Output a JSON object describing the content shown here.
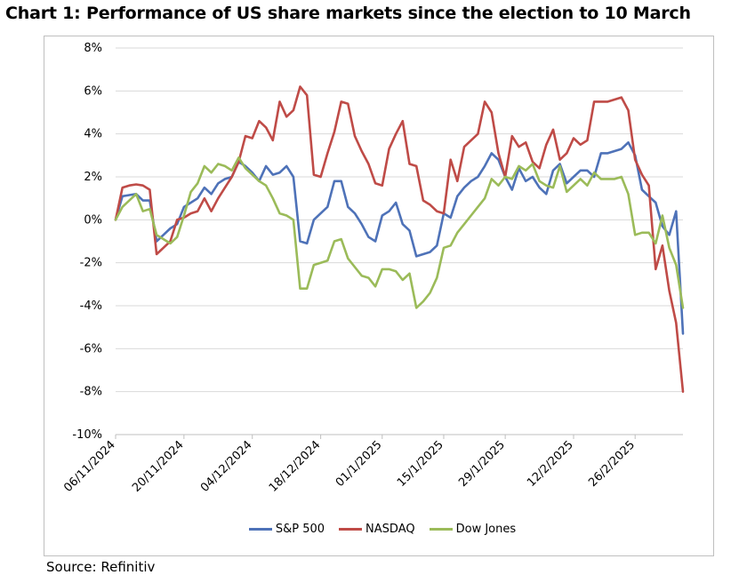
{
  "title": "Chart 1: Performance of US share markets since the election to 10 March",
  "source": "Source: Refinitiv",
  "colors": {
    "sp500": "#4e72b8",
    "nasdaq": "#bf4b47",
    "dow": "#9bbb59",
    "grid": "#d9d9d9",
    "axis": "#bfbfbf"
  },
  "chart_data": {
    "type": "line",
    "title": "Chart 1: Performance of US share markets since the election to 10 March",
    "xlabel": "",
    "ylabel": "",
    "ylim": [
      -10,
      8
    ],
    "yticks": [
      -10,
      -8,
      -6,
      -4,
      -2,
      0,
      2,
      4,
      6,
      8
    ],
    "ytick_labels": [
      "-10%",
      "-8%",
      "-6%",
      "-4%",
      "-2%",
      "0%",
      "2%",
      "4%",
      "6%",
      "8%"
    ],
    "x_tick_labels": [
      {
        "label": "06/11/2024",
        "index": 0
      },
      {
        "label": "20/11/2024",
        "index": 10
      },
      {
        "label": "04/12/2024",
        "index": 20
      },
      {
        "label": "18/12/2024",
        "index": 30
      },
      {
        "label": "01/1/2025",
        "index": 39
      },
      {
        "label": "15/1/2025",
        "index": 48
      },
      {
        "label": "29/1/2025",
        "index": 57
      },
      {
        "label": "12/2/2025",
        "index": 67
      },
      {
        "label": "26/2/2025",
        "index": 76
      }
    ],
    "n_points": 84,
    "series": [
      {
        "name": "S&P 500",
        "key": "sp500",
        "values": [
          0.0,
          1.1,
          1.15,
          1.2,
          0.9,
          0.9,
          -1.0,
          -0.7,
          -0.4,
          -0.2,
          0.6,
          0.8,
          1.0,
          1.5,
          1.2,
          1.7,
          1.9,
          2.0,
          2.7,
          2.5,
          2.2,
          1.8,
          2.5,
          2.1,
          2.2,
          2.5,
          2.0,
          -1.0,
          -1.1,
          0.0,
          0.3,
          0.6,
          1.8,
          1.8,
          0.6,
          0.3,
          -0.2,
          -0.8,
          -1.0,
          0.2,
          0.4,
          0.8,
          -0.2,
          -0.5,
          -1.7,
          -1.6,
          -1.5,
          -1.2,
          0.3,
          0.1,
          1.1,
          1.5,
          1.8,
          2.0,
          2.5,
          3.1,
          2.8,
          2.0,
          1.4,
          2.4,
          1.8,
          2.0,
          1.5,
          1.2,
          2.3,
          2.6,
          1.7,
          2.0,
          2.3,
          2.3,
          2.0,
          3.1,
          3.1,
          3.2,
          3.3,
          3.6,
          3.0,
          1.4,
          1.1,
          0.8,
          -0.3,
          -0.7,
          0.4,
          -5.3
        ]
      },
      {
        "name": "NASDAQ",
        "key": "nasdaq",
        "values": [
          0.0,
          1.5,
          1.6,
          1.65,
          1.6,
          1.4,
          -1.6,
          -1.3,
          -1.0,
          0.0,
          0.1,
          0.3,
          0.4,
          1.0,
          0.4,
          1.0,
          1.5,
          2.0,
          2.7,
          3.9,
          3.8,
          4.6,
          4.3,
          3.7,
          5.5,
          4.8,
          5.1,
          6.2,
          5.8,
          2.1,
          2.0,
          3.1,
          4.1,
          5.5,
          5.4,
          3.9,
          3.2,
          2.6,
          1.7,
          1.6,
          3.3,
          4.0,
          4.6,
          2.6,
          2.5,
          0.9,
          0.7,
          0.4,
          0.3,
          2.8,
          1.8,
          3.4,
          3.7,
          4.0,
          5.5,
          5.0,
          3.1,
          2.0,
          3.9,
          3.4,
          3.6,
          2.7,
          2.4,
          3.5,
          4.2,
          2.8,
          3.1,
          3.8,
          3.5,
          3.7,
          5.5,
          5.5,
          5.5,
          5.6,
          5.7,
          5.1,
          2.8,
          2.1,
          1.6,
          -2.3,
          -1.2,
          -3.3,
          -4.8,
          -8.0
        ]
      },
      {
        "name": "Dow Jones",
        "key": "dow",
        "values": [
          0.0,
          0.6,
          0.9,
          1.2,
          0.4,
          0.5,
          -0.7,
          -0.9,
          -1.1,
          -0.8,
          0.2,
          1.3,
          1.7,
          2.5,
          2.2,
          2.6,
          2.5,
          2.3,
          2.9,
          2.4,
          2.1,
          1.8,
          1.6,
          1.0,
          0.3,
          0.2,
          0.0,
          -3.2,
          -3.2,
          -2.1,
          -2.0,
          -1.9,
          -1.0,
          -0.9,
          -1.8,
          -2.2,
          -2.6,
          -2.7,
          -3.1,
          -2.3,
          -2.3,
          -2.4,
          -2.8,
          -2.5,
          -4.1,
          -3.8,
          -3.4,
          -2.7,
          -1.3,
          -1.2,
          -0.6,
          -0.2,
          0.2,
          0.6,
          1.0,
          1.9,
          1.6,
          2.0,
          1.9,
          2.5,
          2.3,
          2.6,
          1.8,
          1.6,
          1.5,
          2.5,
          1.3,
          1.6,
          1.9,
          1.6,
          2.2,
          1.9,
          1.9,
          1.9,
          2.0,
          1.2,
          -0.7,
          -0.6,
          -0.6,
          -1.1,
          0.2,
          -1.3,
          -2.1,
          -4.1
        ]
      }
    ],
    "legend": [
      {
        "key": "sp500",
        "label": "S&P 500"
      },
      {
        "key": "nasdaq",
        "label": "NASDAQ"
      },
      {
        "key": "dow",
        "label": "Dow Jones"
      }
    ]
  }
}
